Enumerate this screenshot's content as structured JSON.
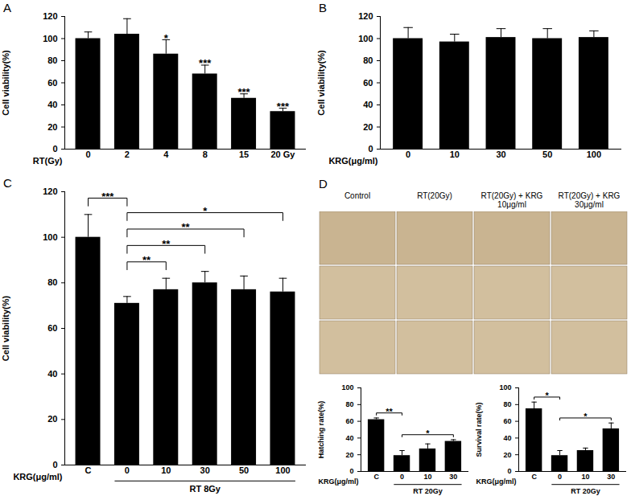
{
  "chart_data": [
    {
      "type": "bar",
      "title": "A",
      "x_label": "RT(Gy)",
      "y_label": "Cell viability(%)",
      "categories": [
        "0",
        "2",
        "4",
        "8",
        "15",
        "20 Gy"
      ],
      "values": [
        100,
        104,
        86,
        68,
        46,
        34
      ],
      "errors": [
        6,
        14,
        13,
        8,
        4,
        3
      ],
      "stars": [
        null,
        null,
        "*",
        "***",
        "***",
        "***"
      ],
      "color": "#000000",
      "ylim": [
        0,
        120
      ],
      "yticks": [
        0,
        20,
        40,
        60,
        80,
        100,
        120
      ]
    },
    {
      "type": "bar",
      "title": "B",
      "x_label": "KRG(μg/ml)",
      "y_label": "Cell viability(%)",
      "categories": [
        "0",
        "10",
        "30",
        "50",
        "100"
      ],
      "values": [
        100,
        97,
        101,
        100,
        101
      ],
      "errors": [
        10,
        7,
        8,
        9,
        6
      ],
      "color": "#000000",
      "ylim": [
        0,
        120
      ],
      "yticks": [
        0,
        20,
        40,
        60,
        80,
        100,
        120
      ]
    },
    {
      "type": "bar",
      "title": "C",
      "x_label": "KRG(μg/ml)",
      "y_label": "Cell viability(%)",
      "categories": [
        "C",
        "0",
        "10",
        "30",
        "50",
        "100"
      ],
      "values": [
        100,
        71,
        77,
        80,
        77,
        76
      ],
      "errors": [
        10,
        3,
        5,
        5,
        6,
        6
      ],
      "brackets": [
        {
          "from": "0",
          "to": "10",
          "label": "**"
        },
        {
          "from": "0",
          "to": "30",
          "label": "**"
        },
        {
          "from": "0",
          "to": "50",
          "label": "**"
        },
        {
          "from": "0",
          "to": "100",
          "label": "*"
        },
        {
          "from": "C",
          "to": "0",
          "label": "***"
        }
      ],
      "group_label": {
        "text": "RT 8Gy",
        "from": "0",
        "to": "100"
      },
      "color": "#000000",
      "ylim": [
        0,
        120
      ],
      "yticks": [
        0,
        20,
        40,
        60,
        80,
        100,
        120
      ]
    },
    {
      "type": "bar",
      "x_label": "KRG(μg/ml)",
      "y_label": "Hatching rate(%)",
      "categories": [
        "C",
        "0",
        "10",
        "30"
      ],
      "values": [
        62,
        19,
        27,
        36
      ],
      "errors": [
        2,
        6,
        6,
        2
      ],
      "brackets": [
        {
          "from": "C",
          "to": "0",
          "label": "**"
        },
        {
          "from": "0",
          "to": "30",
          "label": "*"
        }
      ],
      "group_label": {
        "text": "RT 20Gy",
        "from": "0",
        "to": "30"
      },
      "color": "#000000",
      "ylim": [
        0,
        100
      ],
      "yticks": [
        0,
        20,
        40,
        60,
        80,
        100
      ]
    },
    {
      "type": "bar",
      "x_label": "KRG(μg/ml)",
      "y_label": "Survival rate(%)",
      "categories": [
        "C",
        "0",
        "10",
        "30"
      ],
      "values": [
        75,
        19,
        25,
        51
      ],
      "errors": [
        8,
        6,
        3,
        7
      ],
      "brackets": [
        {
          "from": "C",
          "to": "0",
          "label": "*"
        },
        {
          "from": "0",
          "to": "30",
          "label": "*"
        }
      ],
      "group_label": {
        "text": "RT 20Gy",
        "from": "0",
        "to": "30"
      },
      "color": "#000000",
      "ylim": [
        0,
        100
      ],
      "yticks": [
        0,
        20,
        40,
        60,
        80,
        100
      ]
    }
  ],
  "images": {
    "title": "D",
    "columns": [
      "Control",
      "RT(20Gy)",
      "RT(20Gy) + KRG 10μg/ml",
      "RT(20Gy) + KRG 30μg/ml"
    ]
  }
}
